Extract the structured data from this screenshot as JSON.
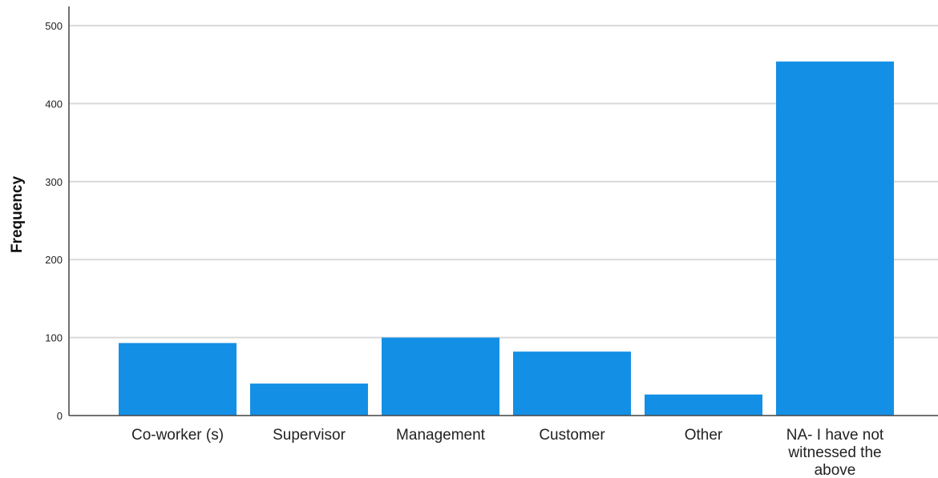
{
  "chart_data": {
    "type": "bar",
    "title": "",
    "xlabel": "",
    "ylabel": "Frequency",
    "ylim": [
      0,
      520
    ],
    "yticks": [
      0,
      100,
      200,
      300,
      400,
      500
    ],
    "grid": true,
    "categories": [
      [
        "Co-worker (s)"
      ],
      [
        "Supervisor"
      ],
      [
        "Management"
      ],
      [
        "Customer"
      ],
      [
        "Other"
      ],
      [
        "NA- I have not",
        "witnessed the",
        "above"
      ]
    ],
    "values": [
      93,
      41,
      100,
      82,
      27,
      454
    ],
    "colors": {
      "bar": "#1390e6",
      "grid": "#d9d9d9",
      "axis": "#444444"
    }
  }
}
